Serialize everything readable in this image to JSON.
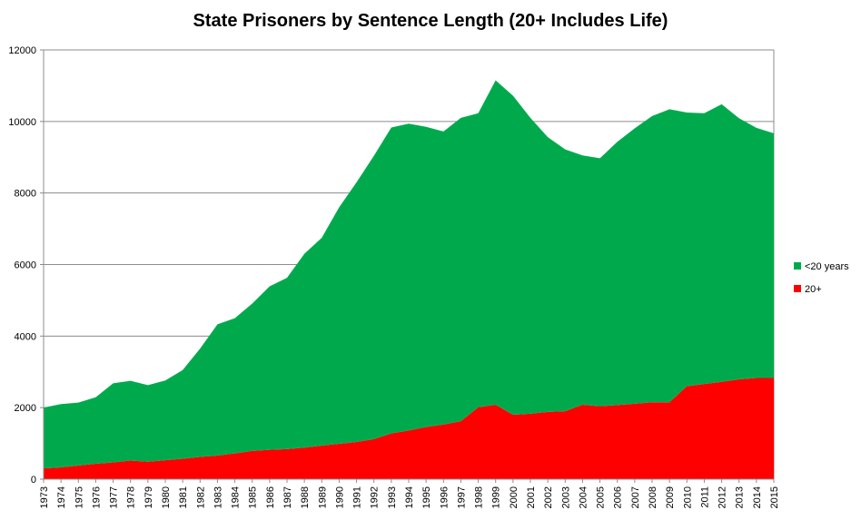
{
  "chart_data": {
    "type": "area",
    "stacked": true,
    "title": "State Prisoners by Sentence Length (20+ Includes Life)",
    "xlabel": "",
    "ylabel": "",
    "ylim": [
      0,
      12000
    ],
    "yticks": [
      0,
      2000,
      4000,
      6000,
      8000,
      10000,
      12000
    ],
    "grid": true,
    "legend_position": "right",
    "categories": [
      "1973",
      "1974",
      "1975",
      "1976",
      "1977",
      "1978",
      "1979",
      "1980",
      "1981",
      "1982",
      "1983",
      "1984",
      "1985",
      "1986",
      "1987",
      "1988",
      "1989",
      "1990",
      "1991",
      "1992",
      "1993",
      "1994",
      "1995",
      "1996",
      "1997",
      "1998",
      "1999",
      "2000",
      "2001",
      "2002",
      "2003",
      "2004",
      "2005",
      "2006",
      "2007",
      "2008",
      "2009",
      "2010",
      "2011",
      "2012",
      "2013",
      "2014",
      "2015"
    ],
    "series": [
      {
        "name": "20+",
        "color": "#ff0000",
        "values": [
          300,
          330,
          380,
          430,
          470,
          520,
          490,
          530,
          570,
          620,
          660,
          720,
          790,
          820,
          840,
          880,
          940,
          990,
          1040,
          1120,
          1280,
          1360,
          1460,
          1530,
          1620,
          2010,
          2080,
          1800,
          1830,
          1880,
          1900,
          2080,
          2040,
          2070,
          2110,
          2150,
          2150,
          2600,
          2660,
          2720,
          2790,
          2830,
          2830
        ]
      },
      {
        "name": "<20 years",
        "color": "#00aa4c",
        "values": [
          1700,
          1770,
          1760,
          1860,
          2210,
          2230,
          2140,
          2230,
          2480,
          3030,
          3670,
          3780,
          4120,
          4570,
          4790,
          5420,
          5810,
          6610,
          7260,
          7920,
          8550,
          8580,
          8390,
          8190,
          8480,
          8220,
          9070,
          8920,
          8270,
          7680,
          7320,
          6970,
          6930,
          7360,
          7700,
          8000,
          8190,
          7650,
          7570,
          7760,
          7300,
          6990,
          6840
        ]
      }
    ]
  }
}
